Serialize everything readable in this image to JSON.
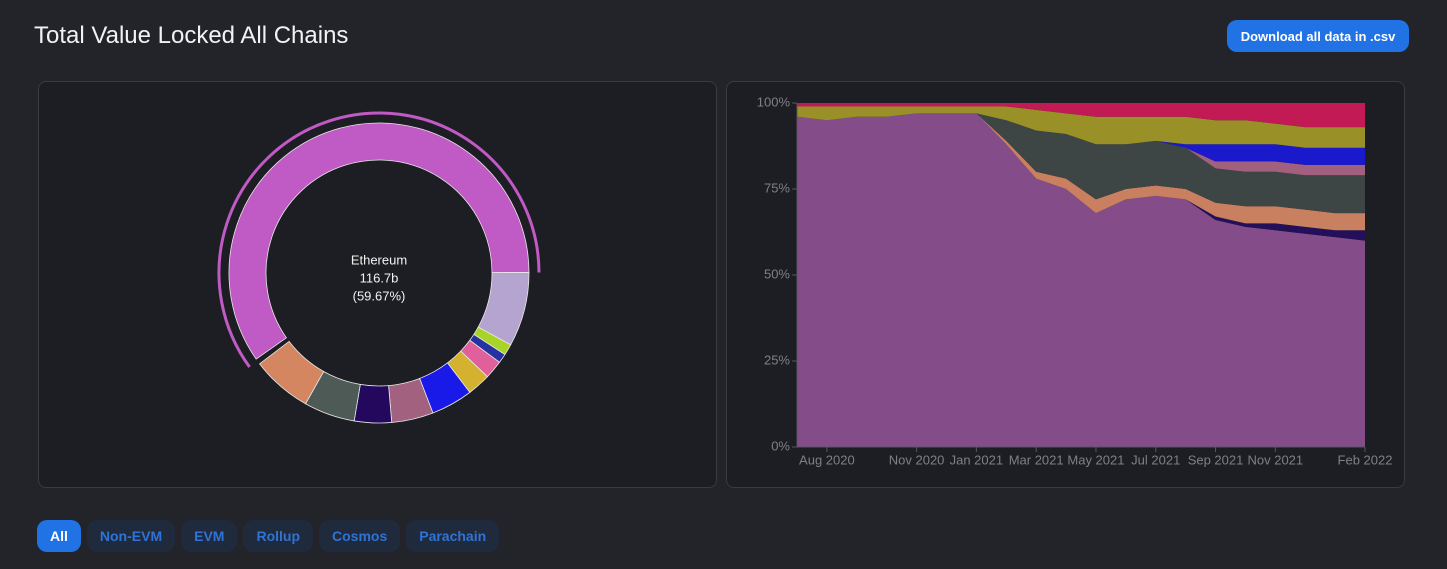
{
  "header": {
    "title": "Total Value Locked All Chains",
    "button": "Download all data in .csv"
  },
  "tabs": [
    "All",
    "Non-EVM",
    "EVM",
    "Rollup",
    "Cosmos",
    "Parachain"
  ],
  "active_tab": "All",
  "chart_data": [
    {
      "type": "pie",
      "categories": [
        "Ethereum",
        null,
        null,
        null,
        null,
        null,
        null,
        null,
        null,
        null,
        null
      ],
      "values": [
        59.67,
        8,
        1.2,
        1,
        2,
        2.5,
        4.5,
        4.5,
        4,
        5.5,
        6.5
      ],
      "value_labels": [
        "(59.67%)",
        null,
        null,
        null,
        null,
        null,
        null,
        null,
        null,
        null,
        null
      ],
      "center_value": "116.7b",
      "colors": [
        "#c05ac4",
        "#b5a4cf",
        "#a8d42a",
        "#2632a0",
        "#e0609c",
        "#d4b12e",
        "#1a1ae8",
        "#a1617f",
        "#23085e",
        "#4e5a55",
        "#d38660"
      ]
    },
    {
      "type": "area",
      "stacked": true,
      "x": [
        "Jul 2020",
        "Aug 2020",
        "Sep 2020",
        "Oct 2020",
        "Nov 2020",
        "Dec 2020",
        "Jan 2021",
        "Feb 2021",
        "Mar 2021",
        "Apr 2021",
        "May 2021",
        "Jun 2021",
        "Jul 2021",
        "Aug 2021",
        "Sep 2021",
        "Oct 2021",
        "Nov 2021",
        "Dec 2021",
        "Jan 2022",
        "Feb 2022"
      ],
      "xticks": [
        "Aug 2020",
        "Nov 2020",
        "Jan 2021",
        "Mar 2021",
        "May 2021",
        "Jul 2021",
        "Sep 2021",
        "Nov 2021",
        "Feb 2022"
      ],
      "ylim": [
        0,
        100
      ],
      "yticks": [
        {
          "value": 0,
          "label": "0%"
        },
        {
          "value": 25,
          "label": "25%"
        },
        {
          "value": 50,
          "label": "50%"
        },
        {
          "value": 75,
          "label": "75%"
        },
        {
          "value": 100,
          "label": "100%"
        }
      ],
      "series": [
        {
          "color": "#844d8a",
          "values": [
            96,
            95,
            96,
            96,
            97,
            97,
            97,
            88,
            78,
            75,
            68,
            72,
            73,
            72,
            66,
            64,
            63,
            62,
            61,
            60
          ]
        },
        {
          "color": "#24105a",
          "values": [
            0,
            0,
            0,
            0,
            0,
            0,
            0,
            0,
            0,
            0,
            0,
            0,
            0,
            0,
            1,
            1,
            2,
            2,
            2,
            3
          ]
        },
        {
          "color": "#c98060",
          "values": [
            0,
            0,
            0,
            0,
            0,
            0,
            0,
            1,
            2,
            3,
            4,
            3,
            3,
            3,
            4,
            5,
            5,
            5,
            5,
            5
          ]
        },
        {
          "color": "#3d4545",
          "values": [
            0,
            0,
            0,
            0,
            0,
            0,
            0,
            6,
            12,
            13,
            16,
            13,
            13,
            12,
            10,
            10,
            10,
            10,
            11,
            11
          ]
        },
        {
          "color": "#a0607e",
          "values": [
            0,
            0,
            0,
            0,
            0,
            0,
            0,
            0,
            0,
            0,
            0,
            0,
            0,
            0,
            2,
            3,
            3,
            3,
            3,
            3
          ]
        },
        {
          "color": "#1a1acc",
          "values": [
            0,
            0,
            0,
            0,
            0,
            0,
            0,
            0,
            0,
            0,
            0,
            0,
            0,
            1,
            5,
            5,
            5,
            5,
            5,
            5
          ]
        },
        {
          "color": "#9a9028",
          "values": [
            3,
            4,
            3,
            3,
            2,
            2,
            2,
            4,
            6,
            6,
            8,
            8,
            7,
            8,
            7,
            7,
            6,
            6,
            6,
            6
          ]
        },
        {
          "color": "#c21a55",
          "values": [
            1,
            1,
            1,
            1,
            1,
            1,
            1,
            1,
            2,
            3,
            4,
            4,
            4,
            4,
            5,
            5,
            6,
            7,
            7,
            7
          ]
        }
      ]
    }
  ]
}
